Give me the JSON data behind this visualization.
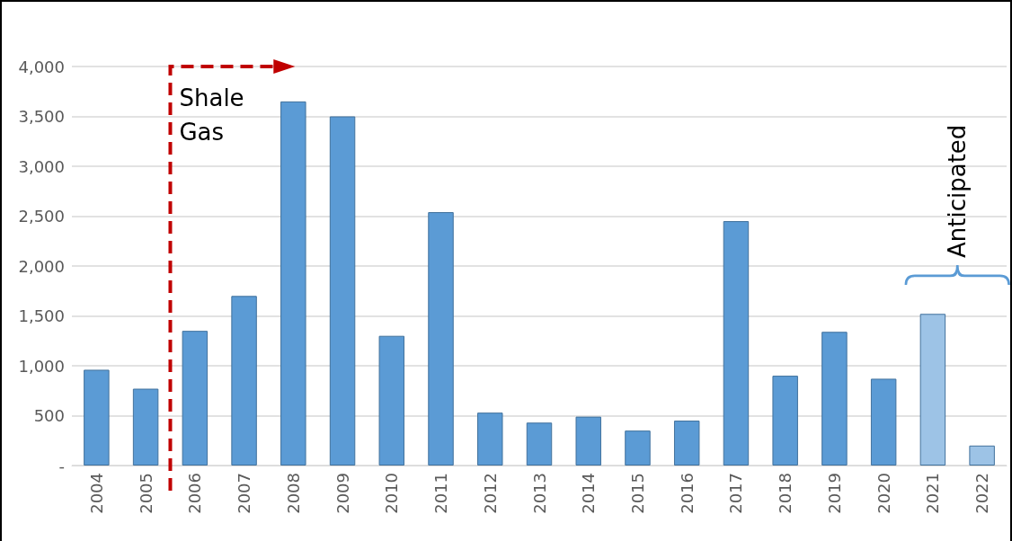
{
  "chart_data": {
    "type": "bar",
    "categories": [
      "2004",
      "2005",
      "2006",
      "2007",
      "2008",
      "2009",
      "2010",
      "2011",
      "2012",
      "2013",
      "2014",
      "2015",
      "2016",
      "2017",
      "2018",
      "2019",
      "2020",
      "2021",
      "2022"
    ],
    "values": [
      960,
      770,
      1350,
      1700,
      3650,
      3500,
      1300,
      2540,
      530,
      430,
      490,
      350,
      450,
      2450,
      900,
      1340,
      870,
      1520,
      200
    ],
    "colors": [
      "#5b9bd5",
      "#5b9bd5",
      "#5b9bd5",
      "#5b9bd5",
      "#5b9bd5",
      "#5b9bd5",
      "#5b9bd5",
      "#5b9bd5",
      "#5b9bd5",
      "#5b9bd5",
      "#5b9bd5",
      "#5b9bd5",
      "#5b9bd5",
      "#5b9bd5",
      "#5b9bd5",
      "#5b9bd5",
      "#5b9bd5",
      "#9dc3e6",
      "#9dc3e6"
    ],
    "ylim": [
      0,
      4000
    ],
    "yticks": [
      {
        "value": 0,
        "label": "-"
      },
      500,
      {
        "value": 1000,
        "label": "1,000"
      },
      {
        "value": 1500,
        "label": "1,500"
      },
      {
        "value": 2000,
        "label": "2,000"
      },
      {
        "value": 2500,
        "label": "2,500"
      },
      {
        "value": 3000,
        "label": "3,000"
      },
      {
        "value": 3500,
        "label": "3,500"
      },
      {
        "value": 4000,
        "label": "4,000"
      }
    ],
    "grid": "y",
    "annotations": [
      "Shale Gas",
      "Anticipated"
    ]
  }
}
